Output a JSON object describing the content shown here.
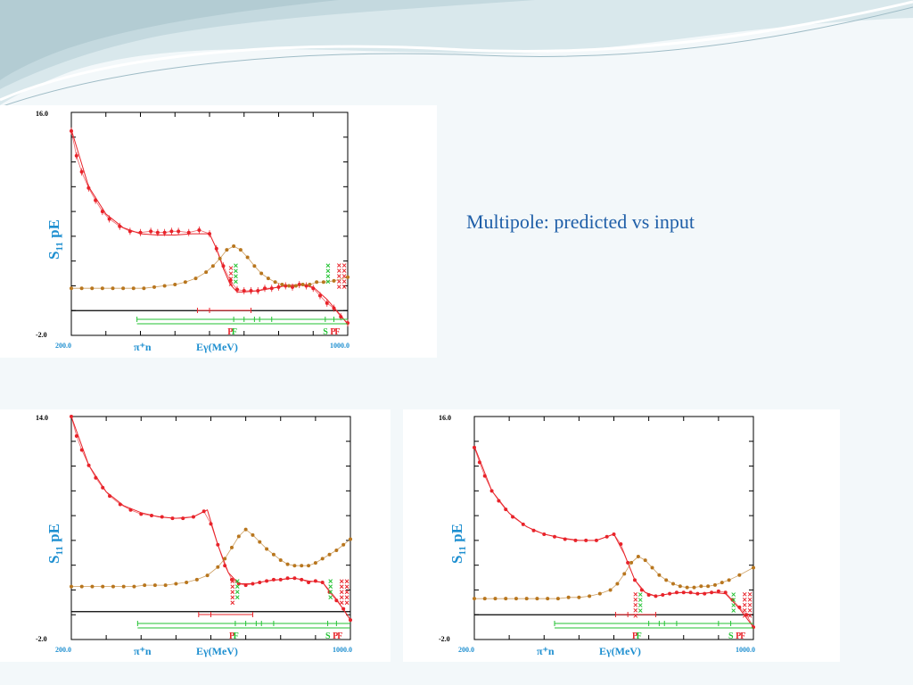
{
  "slide": {
    "caption": "Multipole: predicted vs input"
  },
  "colors": {
    "red": "#e8232a",
    "orange": "#b8761e",
    "green": "#22c232",
    "blue": "#1e8fd0",
    "axis": "#000000"
  },
  "chart_data": [
    {
      "type": "scatter",
      "id": "top-left",
      "ylabel_main": "S",
      "ylabel_sub": "11",
      "ylabel_rest": " pE",
      "ymax_label": "16.0",
      "ymin_label": "-2.0",
      "xmin_label": "200.0",
      "xmax_label": "1000.0",
      "reaction_label": "π⁺n",
      "xlabel": "Eγ(MeV)",
      "xlim": [
        200,
        1000
      ],
      "ylim": [
        -2,
        16
      ],
      "zero_line": 0,
      "series": [
        {
          "name": "red",
          "color": "#e8232a",
          "errorbars": true,
          "x": [
            200,
            215,
            230,
            250,
            270,
            290,
            310,
            340,
            370,
            400,
            430,
            450,
            470,
            490,
            510,
            540,
            570,
            600,
            620,
            640,
            660,
            680,
            700,
            720,
            740,
            760,
            780,
            800,
            820,
            840,
            860,
            880,
            900,
            920,
            940,
            960,
            980,
            1000
          ],
          "y": [
            14.5,
            12.5,
            11.2,
            9.9,
            8.9,
            8.0,
            7.4,
            6.8,
            6.4,
            6.3,
            6.4,
            6.3,
            6.3,
            6.4,
            6.4,
            6.3,
            6.5,
            6.2,
            5.0,
            3.6,
            2.4,
            1.7,
            1.6,
            1.6,
            1.6,
            1.8,
            1.8,
            1.9,
            2.0,
            1.9,
            2.1,
            2.0,
            1.8,
            1.2,
            0.6,
            0.2,
            -0.5,
            -1.0
          ]
        },
        {
          "name": "orange",
          "color": "#b8761e",
          "errorbars": false,
          "x": [
            200,
            230,
            260,
            290,
            320,
            350,
            380,
            410,
            440,
            470,
            500,
            530,
            560,
            590,
            610,
            630,
            650,
            670,
            690,
            710,
            730,
            750,
            770,
            790,
            810,
            830,
            850,
            870,
            890,
            910,
            930,
            960,
            1000
          ],
          "y": [
            1.8,
            1.8,
            1.8,
            1.8,
            1.8,
            1.8,
            1.8,
            1.8,
            1.9,
            2.0,
            2.1,
            2.3,
            2.6,
            3.1,
            3.6,
            4.2,
            4.9,
            5.2,
            4.9,
            4.3,
            3.6,
            3.0,
            2.6,
            2.3,
            2.1,
            2.0,
            2.0,
            2.1,
            2.1,
            2.3,
            2.3,
            2.4,
            2.7
          ]
        }
      ],
      "fit_red": {
        "x": [
          200,
          250,
          300,
          350,
          400,
          450,
          500,
          550,
          600,
          620,
          640,
          660,
          680,
          700,
          740,
          780,
          820,
          860,
          900,
          940,
          980,
          1000
        ],
        "y": [
          14.6,
          10.0,
          7.8,
          6.7,
          6.2,
          6.1,
          6.1,
          6.2,
          6.2,
          5.0,
          3.4,
          2.1,
          1.5,
          1.5,
          1.6,
          1.8,
          2.0,
          2.1,
          1.9,
          0.9,
          -0.4,
          -1.1
        ]
      },
      "resonance_labels": [
        {
          "text": "P",
          "color": "#e8232a",
          "x": 660
        },
        {
          "text": "F",
          "color": "#22c232",
          "x": 672
        },
        {
          "text": "S",
          "color": "#22c232",
          "x": 936
        },
        {
          "text": "P",
          "color": "#e8232a",
          "x": 957
        },
        {
          "text": "F",
          "color": "#e8232a",
          "x": 970
        }
      ],
      "range_bars": [
        {
          "color": "#e8232a",
          "x": [
            565,
            720
          ],
          "ticks": [
            565,
            600,
            720
          ]
        },
        {
          "color": "#22c232",
          "x": [
            390,
            1000
          ],
          "ticks": [
            390,
            670,
            700,
            730,
            745,
            780,
            935,
            960
          ]
        }
      ],
      "marker_columns": [
        {
          "color": "#e8232a",
          "x": 662,
          "y0": 3.0,
          "count": 4
        },
        {
          "color": "#22c232",
          "x": 676,
          "y0": 3.2,
          "count": 4
        },
        {
          "color": "#22c232",
          "x": 943,
          "y0": 3.2,
          "count": 4
        },
        {
          "color": "#e8232a",
          "x": 975,
          "y0": 3.0,
          "count": 5
        },
        {
          "color": "#e8232a",
          "x": 990,
          "y0": 3.0,
          "count": 5
        }
      ]
    },
    {
      "type": "scatter",
      "id": "bottom-left",
      "ylabel_main": "S",
      "ylabel_sub": "11",
      "ylabel_rest": " pE",
      "ymax_label": "14.0",
      "ymin_label": "-2.0",
      "xmin_label": "200.0",
      "xmax_label": "1000.0",
      "reaction_label": "π⁺n",
      "xlabel": "Eγ(MeV)",
      "xlim": [
        200,
        1000
      ],
      "ylim": [
        -2,
        14
      ],
      "zero_line": 0,
      "series": [
        {
          "name": "red",
          "color": "#e8232a",
          "errorbars": false,
          "x": [
            200,
            215,
            230,
            250,
            270,
            290,
            310,
            340,
            370,
            400,
            430,
            460,
            490,
            520,
            550,
            580,
            600,
            620,
            640,
            660,
            680,
            700,
            720,
            740,
            760,
            780,
            800,
            820,
            840,
            860,
            880,
            900,
            920,
            940,
            960,
            980,
            1000
          ],
          "y": [
            14.0,
            12.6,
            11.6,
            10.5,
            9.6,
            8.9,
            8.3,
            7.7,
            7.3,
            7.0,
            6.9,
            6.8,
            6.7,
            6.7,
            6.8,
            7.2,
            6.3,
            4.8,
            3.3,
            2.3,
            2.0,
            1.9,
            2.0,
            2.1,
            2.2,
            2.3,
            2.3,
            2.4,
            2.4,
            2.3,
            2.1,
            2.2,
            2.1,
            1.4,
            0.8,
            0.2,
            -0.6
          ]
        },
        {
          "name": "orange",
          "color": "#b8761e",
          "errorbars": false,
          "x": [
            200,
            230,
            260,
            290,
            320,
            350,
            380,
            410,
            440,
            470,
            500,
            530,
            560,
            590,
            620,
            640,
            660,
            680,
            700,
            720,
            740,
            760,
            780,
            800,
            820,
            840,
            860,
            880,
            900,
            920,
            940,
            960,
            980,
            1000
          ],
          "y": [
            1.8,
            1.8,
            1.8,
            1.8,
            1.8,
            1.8,
            1.8,
            1.9,
            1.9,
            1.9,
            2.0,
            2.1,
            2.3,
            2.6,
            3.2,
            3.8,
            4.6,
            5.4,
            5.9,
            5.5,
            5.0,
            4.5,
            4.1,
            3.7,
            3.4,
            3.3,
            3.3,
            3.3,
            3.5,
            3.8,
            4.1,
            4.4,
            4.8,
            5.2
          ]
        }
      ],
      "fit_red": {
        "x": [
          200,
          250,
          300,
          350,
          400,
          450,
          500,
          550,
          590,
          620,
          650,
          680,
          720,
          760,
          800,
          840,
          880,
          920,
          960,
          1000
        ],
        "y": [
          14.0,
          10.5,
          8.6,
          7.6,
          7.1,
          6.8,
          6.7,
          6.8,
          7.3,
          4.8,
          2.8,
          2.0,
          2.0,
          2.2,
          2.3,
          2.4,
          2.2,
          2.1,
          0.9,
          -0.6
        ]
      },
      "resonance_labels": [
        {
          "text": "P",
          "color": "#e8232a",
          "x": 660
        },
        {
          "text": "F",
          "color": "#22c232",
          "x": 672
        },
        {
          "text": "S",
          "color": "#22c232",
          "x": 936
        },
        {
          "text": "P",
          "color": "#e8232a",
          "x": 957
        },
        {
          "text": "F",
          "color": "#e8232a",
          "x": 970
        }
      ],
      "range_bars": [
        {
          "color": "#e8232a",
          "x": [
            565,
            720
          ],
          "ticks": [
            565,
            600,
            720
          ]
        },
        {
          "color": "#22c232",
          "x": [
            390,
            1000
          ],
          "ticks": [
            390,
            670,
            700,
            730,
            745,
            780,
            935,
            960
          ]
        }
      ],
      "marker_columns": [
        {
          "color": "#e8232a",
          "x": 662,
          "y0": 1.6,
          "count": 5
        },
        {
          "color": "#22c232",
          "x": 676,
          "y0": 1.8,
          "count": 4
        },
        {
          "color": "#22c232",
          "x": 943,
          "y0": 1.8,
          "count": 4
        },
        {
          "color": "#e8232a",
          "x": 975,
          "y0": 1.6,
          "count": 5
        },
        {
          "color": "#e8232a",
          "x": 990,
          "y0": 1.6,
          "count": 5
        }
      ]
    },
    {
      "type": "scatter",
      "id": "bottom-right",
      "ylabel_main": "S",
      "ylabel_sub": "11",
      "ylabel_rest": " pE",
      "ymax_label": "16.0",
      "ymin_label": "-2.0",
      "xmin_label": "200.0",
      "xmax_label": "1000.0",
      "reaction_label": "π⁺n",
      "xlabel": "Eγ(MeV)",
      "xlim": [
        200,
        1000
      ],
      "ylim": [
        -2,
        16
      ],
      "zero_line": 0,
      "series": [
        {
          "name": "red",
          "color": "#e8232a",
          "errorbars": false,
          "x": [
            200,
            215,
            230,
            250,
            270,
            290,
            310,
            340,
            370,
            400,
            430,
            460,
            490,
            520,
            550,
            580,
            600,
            620,
            640,
            660,
            680,
            700,
            720,
            740,
            760,
            780,
            800,
            820,
            840,
            860,
            880,
            900,
            920,
            940,
            960,
            980,
            1000
          ],
          "y": [
            13.5,
            12.3,
            11.2,
            10.0,
            9.2,
            8.5,
            7.9,
            7.3,
            6.8,
            6.5,
            6.3,
            6.1,
            6.0,
            6.0,
            6.0,
            6.3,
            6.5,
            5.7,
            4.2,
            2.8,
            2.0,
            1.6,
            1.5,
            1.6,
            1.7,
            1.8,
            1.8,
            1.8,
            1.7,
            1.7,
            1.8,
            1.9,
            1.8,
            1.2,
            0.6,
            0.0,
            -1.0
          ]
        },
        {
          "name": "orange",
          "color": "#b8761e",
          "errorbars": false,
          "x": [
            200,
            230,
            260,
            290,
            320,
            350,
            380,
            410,
            440,
            470,
            500,
            530,
            560,
            590,
            610,
            630,
            650,
            670,
            690,
            710,
            730,
            750,
            770,
            790,
            810,
            830,
            850,
            870,
            890,
            910,
            930,
            960,
            1000
          ],
          "y": [
            1.3,
            1.3,
            1.3,
            1.3,
            1.3,
            1.3,
            1.3,
            1.3,
            1.3,
            1.4,
            1.4,
            1.5,
            1.7,
            2.0,
            2.5,
            3.3,
            4.2,
            4.7,
            4.4,
            3.8,
            3.2,
            2.8,
            2.5,
            2.3,
            2.2,
            2.2,
            2.3,
            2.3,
            2.4,
            2.6,
            2.8,
            3.2,
            3.8
          ]
        }
      ],
      "fit_red": {
        "x": [
          200,
          250,
          300,
          350,
          400,
          450,
          500,
          550,
          600,
          630,
          660,
          690,
          720,
          760,
          800,
          840,
          880,
          920,
          960,
          1000
        ],
        "y": [
          13.6,
          10.0,
          8.2,
          7.1,
          6.5,
          6.2,
          6.0,
          6.0,
          6.5,
          4.9,
          2.8,
          1.8,
          1.5,
          1.7,
          1.8,
          1.7,
          1.8,
          1.7,
          0.5,
          -1.0
        ]
      },
      "resonance_labels": [
        {
          "text": "P",
          "color": "#e8232a",
          "x": 660
        },
        {
          "text": "F",
          "color": "#22c232",
          "x": 672
        },
        {
          "text": "S",
          "color": "#22c232",
          "x": 936
        },
        {
          "text": "P",
          "color": "#e8232a",
          "x": 957
        },
        {
          "text": "F",
          "color": "#e8232a",
          "x": 970
        }
      ],
      "range_bars": [
        {
          "color": "#e8232a",
          "x": [
            605,
            720
          ],
          "ticks": [
            605,
            640,
            720
          ]
        },
        {
          "color": "#22c232",
          "x": [
            430,
            1000
          ],
          "ticks": [
            430,
            700,
            730,
            745,
            780,
            900,
            935
          ]
        }
      ],
      "marker_columns": [
        {
          "color": "#e8232a",
          "x": 662,
          "y0": 1.0,
          "count": 5
        },
        {
          "color": "#22c232",
          "x": 676,
          "y0": 1.2,
          "count": 4
        },
        {
          "color": "#22c232",
          "x": 943,
          "y0": 1.2,
          "count": 4
        },
        {
          "color": "#e8232a",
          "x": 975,
          "y0": 1.0,
          "count": 5
        },
        {
          "color": "#e8232a",
          "x": 990,
          "y0": 1.0,
          "count": 5
        }
      ]
    }
  ]
}
